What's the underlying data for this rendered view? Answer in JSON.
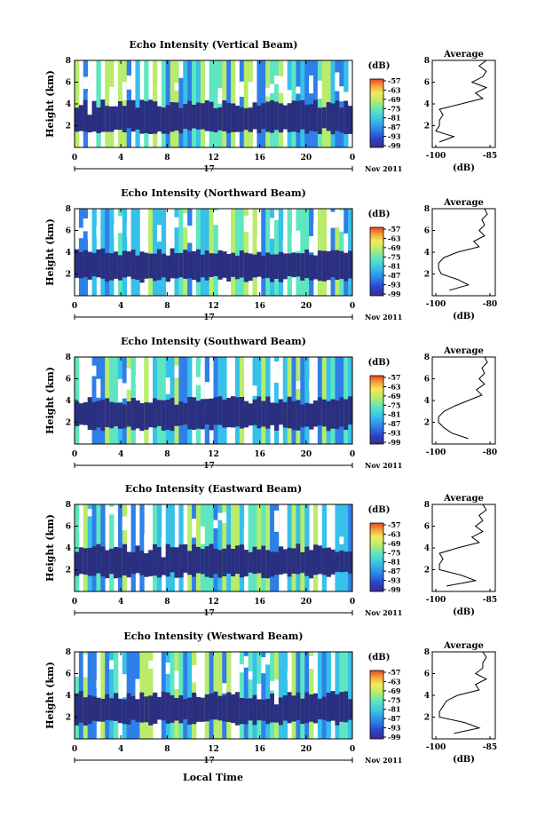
{
  "figure": {
    "bottom_xlabel": "Local Time"
  },
  "chart_data": [
    {
      "type": "heatmap",
      "title": "Echo Intensity (Vertical Beam)",
      "ylabel": "Height (km)",
      "ylim": [
        0,
        8
      ],
      "yticks": [
        "2",
        "4",
        "6",
        "8"
      ],
      "xlim": [
        0,
        24
      ],
      "xticks": [
        "0",
        "4",
        "8",
        "12",
        "16",
        "20",
        "0"
      ],
      "date_label": "17",
      "date_suffix": "Nov 2011",
      "colorbar": {
        "unit": "(dB)",
        "ticks": [
          "-57",
          "-63",
          "-69",
          "-75",
          "-81",
          "-87",
          "-93",
          "-99"
        ],
        "range": [
          -99,
          -57
        ]
      },
      "average": {
        "title": "Average",
        "xlabel": "(dB)",
        "xticks": [
          "-100",
          "-85"
        ],
        "xlim": [
          -100,
          -85
        ],
        "profile": [
          [
            0.5,
            -99
          ],
          [
            1.0,
            -95
          ],
          [
            1.5,
            -100
          ],
          [
            2.0,
            -99
          ],
          [
            2.5,
            -99
          ],
          [
            3.0,
            -98
          ],
          [
            3.5,
            -99
          ],
          [
            4.0,
            -93
          ],
          [
            4.5,
            -87
          ],
          [
            5.0,
            -89
          ],
          [
            5.5,
            -86
          ],
          [
            6.0,
            -90
          ],
          [
            6.5,
            -87
          ],
          [
            7.0,
            -86
          ],
          [
            7.5,
            -88
          ],
          [
            8.0,
            -86
          ]
        ]
      }
    },
    {
      "type": "heatmap",
      "title": "Echo Intensity (Northward Beam)",
      "ylabel": "Height (km)",
      "ylim": [
        0,
        8
      ],
      "yticks": [
        "2",
        "4",
        "6",
        "8"
      ],
      "xlim": [
        0,
        24
      ],
      "xticks": [
        "0",
        "4",
        "8",
        "12",
        "16",
        "20",
        "0"
      ],
      "date_label": "17",
      "date_suffix": "Nov 2011",
      "colorbar": {
        "unit": "(dB)",
        "ticks": [
          "-57",
          "-63",
          "-69",
          "-75",
          "-81",
          "-87",
          "-93",
          "-99"
        ],
        "range": [
          -99,
          -57
        ]
      },
      "average": {
        "title": "Average",
        "xlabel": "(dB)",
        "xticks": [
          "-100",
          "-80"
        ],
        "xlim": [
          -100,
          -80
        ],
        "profile": [
          [
            0.5,
            -95
          ],
          [
            1.0,
            -88
          ],
          [
            1.5,
            -92
          ],
          [
            2.0,
            -98
          ],
          [
            2.5,
            -99
          ],
          [
            3.0,
            -99
          ],
          [
            3.5,
            -97
          ],
          [
            4.0,
            -92
          ],
          [
            4.5,
            -84
          ],
          [
            5.0,
            -86
          ],
          [
            5.5,
            -82
          ],
          [
            6.0,
            -84
          ],
          [
            6.5,
            -82
          ],
          [
            7.0,
            -83
          ],
          [
            7.5,
            -81
          ],
          [
            8.0,
            -82
          ]
        ]
      }
    },
    {
      "type": "heatmap",
      "title": "Echo Intensity (Southward Beam)",
      "ylabel": "Height (km)",
      "ylim": [
        0,
        8
      ],
      "yticks": [
        "2",
        "4",
        "6",
        "8"
      ],
      "xlim": [
        0,
        24
      ],
      "xticks": [
        "0",
        "4",
        "8",
        "12",
        "16",
        "20",
        "0"
      ],
      "date_label": "17",
      "date_suffix": "Nov 2011",
      "colorbar": {
        "unit": "(dB)",
        "ticks": [
          "-57",
          "-63",
          "-69",
          "-75",
          "-81",
          "-87",
          "-93",
          "-99"
        ],
        "range": [
          -99,
          -57
        ]
      },
      "average": {
        "title": "Average",
        "xlabel": "",
        "xticks": [
          "-100",
          "-80"
        ],
        "xlim": [
          -100,
          -80
        ],
        "profile": [
          [
            0.5,
            -88
          ],
          [
            1.0,
            -94
          ],
          [
            1.5,
            -97
          ],
          [
            2.0,
            -99
          ],
          [
            2.5,
            -99
          ],
          [
            3.0,
            -97
          ],
          [
            3.5,
            -93
          ],
          [
            4.0,
            -88
          ],
          [
            4.5,
            -83
          ],
          [
            5.0,
            -85
          ],
          [
            5.5,
            -82
          ],
          [
            6.0,
            -84
          ],
          [
            6.5,
            -82
          ],
          [
            7.0,
            -83
          ],
          [
            7.5,
            -81
          ],
          [
            8.0,
            -82
          ]
        ]
      }
    },
    {
      "type": "heatmap",
      "title": "Echo Intensity (Eastward Beam)",
      "ylabel": "Height (km)",
      "ylim": [
        0,
        8
      ],
      "yticks": [
        "2",
        "4",
        "6",
        "8"
      ],
      "xlim": [
        0,
        24
      ],
      "xticks": [
        "0",
        "4",
        "8",
        "12",
        "16",
        "20",
        "0"
      ],
      "date_label": "17",
      "date_suffix": "Nov 2011",
      "colorbar": {
        "unit": "(dB)",
        "ticks": [
          "-57",
          "-63",
          "-69",
          "-75",
          "-81",
          "-87",
          "-93",
          "-99"
        ],
        "range": [
          -99,
          -57
        ]
      },
      "average": {
        "title": "Average",
        "xlabel": "(dB)",
        "xticks": [
          "-100",
          "-85"
        ],
        "xlim": [
          -100,
          -85
        ],
        "profile": [
          [
            0.5,
            -97
          ],
          [
            1.0,
            -89
          ],
          [
            1.5,
            -93
          ],
          [
            2.0,
            -99
          ],
          [
            2.5,
            -99
          ],
          [
            3.0,
            -98
          ],
          [
            3.5,
            -99
          ],
          [
            4.0,
            -94
          ],
          [
            4.5,
            -88
          ],
          [
            5.0,
            -90
          ],
          [
            5.5,
            -87
          ],
          [
            6.0,
            -89
          ],
          [
            6.5,
            -87
          ],
          [
            7.0,
            -88
          ],
          [
            7.5,
            -86
          ],
          [
            8.0,
            -87
          ]
        ]
      }
    },
    {
      "type": "heatmap",
      "title": "Echo Intensity (Westward Beam)",
      "ylabel": "Height (km)",
      "ylim": [
        0,
        8
      ],
      "yticks": [
        "2",
        "4",
        "6",
        "8"
      ],
      "xlim": [
        0,
        24
      ],
      "xticks": [
        "0",
        "4",
        "8",
        "12",
        "16",
        "20",
        "0"
      ],
      "date_label": "17",
      "date_suffix": "Nov 2011",
      "colorbar": {
        "unit": "(dB)",
        "ticks": [
          "-57",
          "-63",
          "-69",
          "-75",
          "-81",
          "-87",
          "-93",
          "-99"
        ],
        "range": [
          -99,
          -57
        ]
      },
      "average": {
        "title": "Average",
        "xlabel": "(dB)",
        "xticks": [
          "-100",
          "-85"
        ],
        "xlim": [
          -100,
          -85
        ],
        "profile": [
          [
            0.5,
            -95
          ],
          [
            1.0,
            -88
          ],
          [
            1.5,
            -92
          ],
          [
            2.0,
            -99
          ],
          [
            2.5,
            -99
          ],
          [
            3.0,
            -98
          ],
          [
            3.5,
            -97
          ],
          [
            4.0,
            -94
          ],
          [
            4.5,
            -88
          ],
          [
            5.0,
            -89
          ],
          [
            5.5,
            -86
          ],
          [
            6.0,
            -89
          ],
          [
            6.5,
            -87
          ],
          [
            7.0,
            -87
          ],
          [
            7.5,
            -86
          ],
          [
            8.0,
            -87
          ]
        ]
      }
    }
  ]
}
